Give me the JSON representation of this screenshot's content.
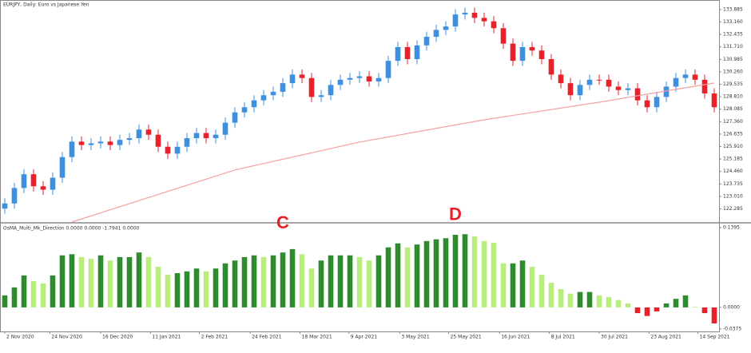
{
  "chart_data": {
    "type": "candlestick",
    "title": "EURJPY, Daily: Euro vs Japanese Yen",
    "up_color": "#3d8fe0",
    "down_color": "#e8202a",
    "xlim": [
      -0.5,
      74.5
    ],
    "ylim": [
      121.52,
      134.44
    ],
    "yticks": [
      133.885,
      {
        "value": 133.16,
        "label": "133.160"
      },
      132.435,
      {
        "value": 131.71,
        "label": "131.710"
      },
      130.985,
      {
        "value": 130.26,
        "label": "130.260"
      },
      129.535,
      {
        "value": 128.81,
        "label": "128.810"
      },
      128.085,
      {
        "value": 127.36,
        "label": "127.360"
      },
      126.635,
      {
        "value": 125.91,
        "label": "125.910"
      },
      125.185,
      {
        "value": 124.46,
        "label": "124.460"
      },
      123.735,
      {
        "value": 123.01,
        "label": "123.010"
      },
      122.285
    ],
    "xticks": [
      {
        "value": 0,
        "label": "2 Nov 2020"
      },
      {
        "value": 4.7,
        "label": "24 Nov 2020"
      },
      {
        "value": 10,
        "label": "16 Dec 2020"
      },
      {
        "value": 15.2,
        "label": "11 Jan 2021"
      },
      {
        "value": 20.3,
        "label": "2 Feb 2021"
      },
      {
        "value": 25.6,
        "label": "24 Feb 2021"
      },
      {
        "value": 30.8,
        "label": "18 Mar 2021"
      },
      {
        "value": 35.9,
        "label": "9 Apr 2021"
      },
      {
        "value": 41.2,
        "label": "3 May 2021"
      },
      {
        "value": 46.3,
        "label": "25 May 2021"
      },
      {
        "value": 51.6,
        "label": "16 Jun 2021"
      },
      {
        "value": 56.8,
        "label": "8 Jul 2021"
      },
      {
        "value": 62,
        "label": "30 Jul 2021"
      },
      {
        "value": 67.2,
        "label": "23 Aug 2021"
      },
      {
        "value": 72.3,
        "label": "14 Sep 2021"
      }
    ],
    "open": [
      122.3,
      122.6,
      123.5,
      124.3,
      123.6,
      123.4,
      124.1,
      125.3,
      126.2,
      126.0,
      126.1,
      126.2,
      126.0,
      126.3,
      126.4,
      126.9,
      126.6,
      125.9,
      125.5,
      125.9,
      126.4,
      126.7,
      126.4,
      126.6,
      127.3,
      127.9,
      128.2,
      128.6,
      128.9,
      129.1,
      129.6,
      130.1,
      129.9,
      128.8,
      128.9,
      129.5,
      129.8,
      129.9,
      130.0,
      129.7,
      129.9,
      130.9,
      131.7,
      131.0,
      131.8,
      132.3,
      132.7,
      132.9,
      133.6,
      133.7,
      133.4,
      133.2,
      132.8,
      131.9,
      130.9,
      131.7,
      131.5,
      131.0,
      130.1,
      129.6,
      128.9,
      129.5,
      129.8,
      129.8,
      129.4,
      129.2,
      129.3,
      128.6,
      128.2,
      128.8,
      129.4,
      129.9,
      130.1,
      129.8,
      129.0
    ],
    "high": [
      122.9,
      123.8,
      124.6,
      124.6,
      123.9,
      124.4,
      125.6,
      126.5,
      126.5,
      126.4,
      126.5,
      126.5,
      126.6,
      126.7,
      127.2,
      127.2,
      126.9,
      126.2,
      126.2,
      126.7,
      127.0,
      127.0,
      126.9,
      127.6,
      128.2,
      128.5,
      128.9,
      129.2,
      129.4,
      129.9,
      130.4,
      130.4,
      130.2,
      129.2,
      129.8,
      130.1,
      130.2,
      130.3,
      130.3,
      130.2,
      131.2,
      132.0,
      132.0,
      132.1,
      132.6,
      133.0,
      133.2,
      133.9,
      134.0,
      134.0,
      133.7,
      133.5,
      133.1,
      132.2,
      132.0,
      132.0,
      131.8,
      131.3,
      130.4,
      129.9,
      129.8,
      130.1,
      130.1,
      130.1,
      129.7,
      129.6,
      129.6,
      128.9,
      129.1,
      129.7,
      130.2,
      130.4,
      130.4,
      130.1,
      129.3
    ],
    "low": [
      122.0,
      122.3,
      123.2,
      123.3,
      123.1,
      123.1,
      123.8,
      125.0,
      125.7,
      125.7,
      125.8,
      125.7,
      125.7,
      126.0,
      126.1,
      126.3,
      125.6,
      125.2,
      125.2,
      125.6,
      126.1,
      126.1,
      126.1,
      126.3,
      127.0,
      127.6,
      127.9,
      128.3,
      128.6,
      128.8,
      129.3,
      129.6,
      128.5,
      128.5,
      128.6,
      129.2,
      129.5,
      129.6,
      129.4,
      129.4,
      129.6,
      130.6,
      130.7,
      130.7,
      131.5,
      132.0,
      132.4,
      132.6,
      133.3,
      133.1,
      132.9,
      132.5,
      131.6,
      130.6,
      130.6,
      131.2,
      130.7,
      129.8,
      129.3,
      128.6,
      128.6,
      129.2,
      129.5,
      129.1,
      128.9,
      128.9,
      128.3,
      127.9,
      127.9,
      128.5,
      129.1,
      129.6,
      129.5,
      128.7,
      127.9
    ],
    "close": [
      122.6,
      123.5,
      124.3,
      123.6,
      123.4,
      124.1,
      125.3,
      126.2,
      126.0,
      126.1,
      126.2,
      126.0,
      126.3,
      126.4,
      126.9,
      126.6,
      125.9,
      125.5,
      125.9,
      126.4,
      126.7,
      126.4,
      126.6,
      127.3,
      127.9,
      128.2,
      128.6,
      128.9,
      129.1,
      129.6,
      130.1,
      129.9,
      128.8,
      128.9,
      129.5,
      129.8,
      129.9,
      130.0,
      129.7,
      129.9,
      130.9,
      131.7,
      131.0,
      131.8,
      132.3,
      132.7,
      132.9,
      133.6,
      133.7,
      133.4,
      133.2,
      132.8,
      131.9,
      130.9,
      131.7,
      131.5,
      131.0,
      130.1,
      129.6,
      128.9,
      129.5,
      129.8,
      129.8,
      129.4,
      129.2,
      129.3,
      128.6,
      128.2,
      128.8,
      129.4,
      129.9,
      130.1,
      129.8,
      129.0,
      128.2
    ],
    "ma": {
      "x": [
        7,
        24,
        37,
        50,
        62,
        70,
        74
      ],
      "values": [
        121.52,
        124.55,
        126.17,
        127.47,
        128.49,
        129.24,
        129.61
      ],
      "color": "#f4a0a0"
    },
    "annotations": [
      {
        "text": "C",
        "x": 29,
        "y": 0.146
      },
      {
        "text": "D",
        "x": 47,
        "y": 0.161
      }
    ],
    "indicator": {
      "type": "bar",
      "title": "OsMA_Multi_Mk_Direction 0.0000 0.0000 -1.7941 0.0000",
      "rise_color": "#2e8b2e",
      "fall_color": "#b8ec7c",
      "negative_color": "#e8202a",
      "ylim": [
        -0.042,
        0.1465
      ],
      "yticks": [
        0.1395,
        {
          "value": 0,
          "label": "0.0000"
        },
        -0.0375
      ],
      "values": [
        0.021,
        0.035,
        0.056,
        0.046,
        0.042,
        0.056,
        0.091,
        0.093,
        0.088,
        0.085,
        0.091,
        0.082,
        0.088,
        0.088,
        0.096,
        0.088,
        0.071,
        0.057,
        0.06,
        0.063,
        0.068,
        0.063,
        0.068,
        0.077,
        0.082,
        0.088,
        0.091,
        0.088,
        0.091,
        0.096,
        0.102,
        0.093,
        0.068,
        0.082,
        0.091,
        0.091,
        0.091,
        0.088,
        0.082,
        0.091,
        0.105,
        0.112,
        0.105,
        0.11,
        0.116,
        0.119,
        0.121,
        0.127,
        0.128,
        0.124,
        0.116,
        0.113,
        0.077,
        0.077,
        0.082,
        0.071,
        0.057,
        0.043,
        0.032,
        0.024,
        0.027,
        0.027,
        0.021,
        0.018,
        0.013,
        0.007,
        -0.01,
        -0.015,
        -0.007,
        0.007,
        0.015,
        0.021,
        0.001,
        -0.01,
        -0.028
      ]
    }
  }
}
